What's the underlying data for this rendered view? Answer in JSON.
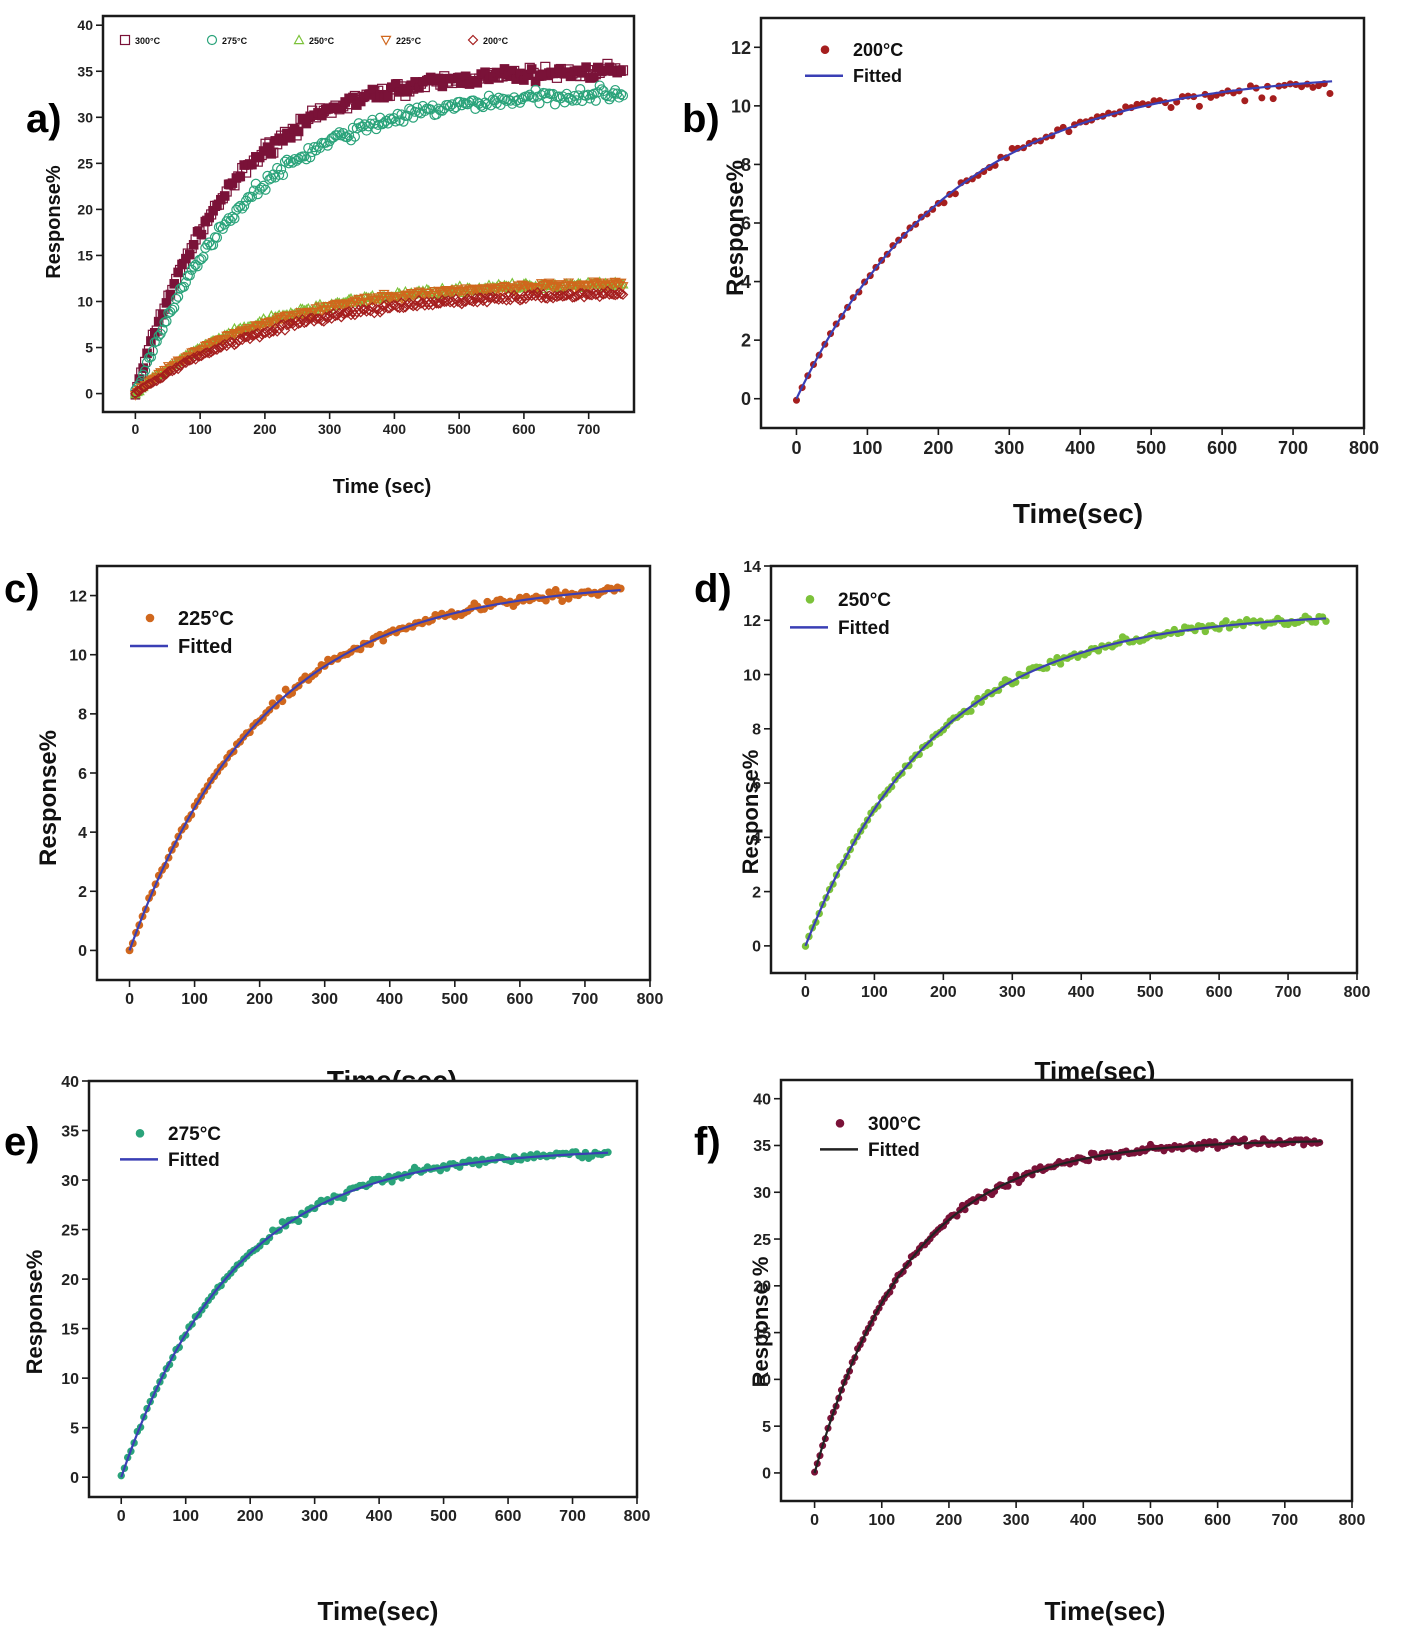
{
  "colors": {
    "300C": "#7a1238",
    "275C": "#2aa37a",
    "250C": "#7cc23a",
    "225C": "#d0671d",
    "200C": "#a51e1e",
    "fit_blue": "#3a3fb5",
    "fit_black": "#222222"
  },
  "chart_data": [
    {
      "panel": "a)",
      "type": "scatter",
      "title": "",
      "xlabel": "Time (sec)",
      "ylabel": "Response%",
      "xlim": [
        -50,
        770
      ],
      "ylim": [
        -2,
        41
      ],
      "xticks": [
        0,
        100,
        200,
        300,
        400,
        500,
        600,
        700
      ],
      "yticks": [
        0,
        5,
        10,
        15,
        20,
        25,
        30,
        35,
        40
      ],
      "legend_position": "top",
      "series": [
        {
          "name": "300°C",
          "key": "300C",
          "marker": "square",
          "A": 35.2,
          "tau": 145
        },
        {
          "name": "275°C",
          "key": "275C",
          "marker": "circle",
          "A": 33.0,
          "tau": 170
        },
        {
          "name": "250°C",
          "key": "250C",
          "marker": "triangle",
          "A": 12.2,
          "tau": 195
        },
        {
          "name": "225°C",
          "key": "225C",
          "marker": "triangle-down",
          "A": 12.2,
          "tau": 205
        },
        {
          "name": "200°C",
          "key": "200C",
          "marker": "diamond",
          "A": 11.2,
          "tau": 220
        }
      ]
    },
    {
      "panel": "b)",
      "type": "scatter",
      "title": "",
      "xlabel": "Time(sec)",
      "ylabel": "Response%",
      "xlim": [
        -50,
        800
      ],
      "ylim": [
        -1,
        13
      ],
      "xticks": [
        0,
        100,
        200,
        300,
        400,
        500,
        600,
        700,
        800
      ],
      "yticks": [
        0,
        2,
        4,
        6,
        8,
        10,
        12
      ],
      "legend_position": "top-left",
      "series": [
        {
          "name": "200°C",
          "key": "200C",
          "A": 11.2,
          "tau": 220
        },
        {
          "name": "Fitted",
          "key": "fit_blue",
          "line": true,
          "A": 11.2,
          "tau": 220
        }
      ]
    },
    {
      "panel": "c)",
      "type": "scatter",
      "title": "",
      "xlabel": "Time(sec)",
      "ylabel": "Response%",
      "xlim": [
        -50,
        800
      ],
      "ylim": [
        -1,
        13
      ],
      "xticks": [
        0,
        100,
        200,
        300,
        400,
        500,
        600,
        700,
        800
      ],
      "yticks": [
        0,
        2,
        4,
        6,
        8,
        10,
        12
      ],
      "legend_position": "top-left",
      "series": [
        {
          "name": "225°C",
          "key": "225C",
          "A": 12.5,
          "tau": 205
        },
        {
          "name": "Fitted",
          "key": "fit_blue",
          "line": true,
          "A": 12.5,
          "tau": 205
        }
      ]
    },
    {
      "panel": "d)",
      "type": "scatter",
      "title": "",
      "xlabel": "Time(sec)",
      "ylabel": "Response%",
      "xlim": [
        -50,
        800
      ],
      "ylim": [
        -1,
        14
      ],
      "xticks": [
        0,
        100,
        200,
        300,
        400,
        500,
        600,
        700,
        800
      ],
      "yticks": [
        0,
        2,
        4,
        6,
        8,
        10,
        12,
        14
      ],
      "legend_position": "top-left",
      "series": [
        {
          "name": "250°C",
          "key": "250C",
          "A": 12.3,
          "tau": 190
        },
        {
          "name": "Fitted",
          "key": "fit_blue",
          "line": true,
          "A": 12.3,
          "tau": 190
        }
      ]
    },
    {
      "panel": "e)",
      "type": "scatter",
      "title": "",
      "xlabel": "Time(sec)",
      "ylabel": "Response%",
      "xlim": [
        -50,
        800
      ],
      "ylim": [
        -2,
        40
      ],
      "xticks": [
        0,
        100,
        200,
        300,
        400,
        500,
        600,
        700,
        800
      ],
      "yticks": [
        0,
        5,
        10,
        15,
        20,
        25,
        30,
        35,
        40
      ],
      "legend_position": "top-left",
      "series": [
        {
          "name": "275°C",
          "key": "275C",
          "A": 33.2,
          "tau": 175
        },
        {
          "name": "Fitted",
          "key": "fit_blue",
          "line": true,
          "A": 33.2,
          "tau": 175
        }
      ]
    },
    {
      "panel": "f)",
      "type": "scatter",
      "title": "",
      "xlabel": "Time(sec)",
      "ylabel": "Response %",
      "xlim": [
        -50,
        800
      ],
      "ylim": [
        -3,
        42
      ],
      "xticks": [
        0,
        100,
        200,
        300,
        400,
        500,
        600,
        700,
        800
      ],
      "yticks": [
        0,
        5,
        10,
        15,
        20,
        25,
        30,
        35,
        40
      ],
      "legend_position": "top-left",
      "series": [
        {
          "name": "300°C",
          "key": "300C",
          "A": 35.6,
          "tau": 140
        },
        {
          "name": "Fitted",
          "key": "fit_black",
          "line": true,
          "A": 35.6,
          "tau": 140
        }
      ]
    }
  ]
}
